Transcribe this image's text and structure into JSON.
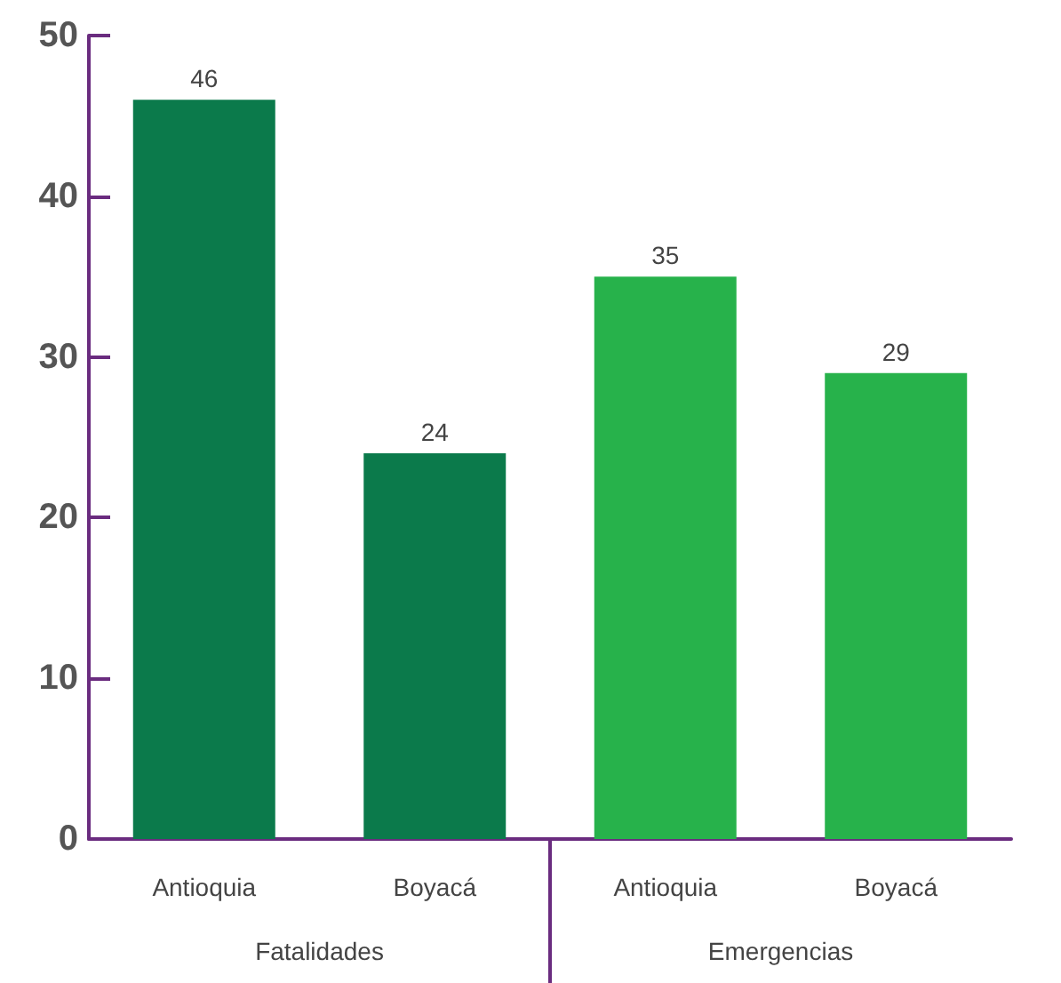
{
  "chart_data": {
    "type": "bar",
    "categories": [
      "Antioquia",
      "Boyacá",
      "Antioquia",
      "Boyacá"
    ],
    "values": [
      46,
      24,
      35,
      29
    ],
    "colors": [
      "#0b7a4b",
      "#0b7a4b",
      "#27b24b",
      "#27b24b"
    ],
    "annotations": [
      "Fatalidades",
      "Emergencias"
    ],
    "ylim": [
      0,
      50
    ],
    "yticks": [
      0,
      10,
      20,
      30,
      40,
      50
    ],
    "grid": false,
    "data_labels": true
  }
}
